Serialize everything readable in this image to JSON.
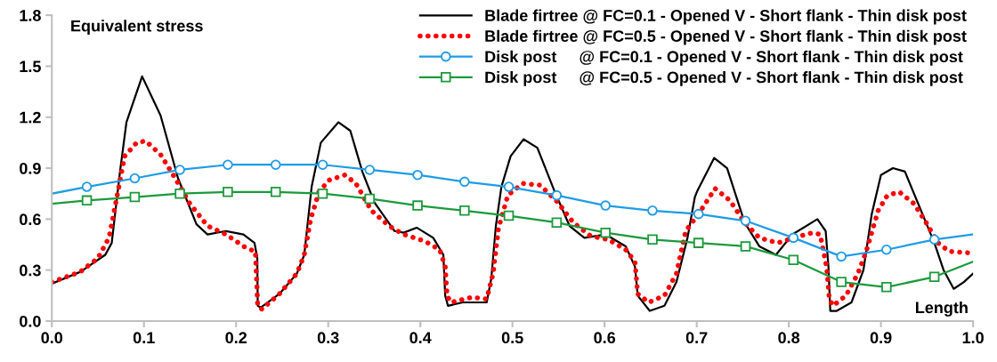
{
  "chart_data": {
    "type": "line",
    "ylabel": "Equivalent stress",
    "xlabel": "Length",
    "xlim": [
      0,
      1
    ],
    "xticks": [
      {
        "value": 0,
        "label": "0.0"
      },
      0.1,
      0.2,
      0.3,
      0.4,
      0.5,
      0.6,
      0.7,
      0.8,
      0.9,
      {
        "value": 1,
        "label": "1.0"
      }
    ],
    "ylim": [
      0,
      1.8
    ],
    "yticks": [
      {
        "value": 0,
        "label": "0.0"
      },
      0.3,
      0.6,
      0.9,
      1.2,
      1.5,
      1.8
    ],
    "grid": false,
    "legend": "top right",
    "series": [
      {
        "name": "Blade firtree @ FC=0.1 - Opened V - Short flank - Thin disk post",
        "color": "#000000",
        "line_style": "solid",
        "marker": "none",
        "x": [
          0,
          0.031,
          0.058,
          0.065,
          0.074,
          0.081,
          0.098,
          0.118,
          0.137,
          0.157,
          0.169,
          0.189,
          0.208,
          0.22,
          0.223,
          0.2235,
          0.227,
          0.247,
          0.266,
          0.274,
          0.282,
          0.292,
          0.311,
          0.324,
          0.337,
          0.35,
          0.372,
          0.382,
          0.396,
          0.414,
          0.425,
          0.427,
          0.43,
          0.446,
          0.472,
          0.477,
          0.482,
          0.488,
          0.498,
          0.512,
          0.527,
          0.546,
          0.562,
          0.578,
          0.601,
          0.623,
          0.633,
          0.636,
          0.649,
          0.665,
          0.678,
          0.69,
          0.698,
          0.701,
          0.719,
          0.733,
          0.752,
          0.768,
          0.786,
          0.804,
          0.831,
          0.84,
          0.843,
          0.845,
          0.852,
          0.868,
          0.881,
          0.89,
          0.9,
          0.913,
          0.926,
          0.942,
          0.958,
          0.968,
          0.979,
          0.99,
          1.0
        ],
        "values": [
          0.22,
          0.29,
          0.39,
          0.46,
          0.88,
          1.17,
          1.44,
          1.21,
          0.84,
          0.57,
          0.51,
          0.53,
          0.51,
          0.46,
          0.37,
          0.09,
          0.08,
          0.16,
          0.28,
          0.39,
          0.79,
          1.05,
          1.17,
          1.12,
          0.88,
          0.7,
          0.53,
          0.52,
          0.55,
          0.49,
          0.39,
          0.15,
          0.09,
          0.11,
          0.11,
          0.25,
          0.56,
          0.79,
          0.97,
          1.07,
          1.02,
          0.76,
          0.56,
          0.49,
          0.51,
          0.44,
          0.32,
          0.15,
          0.06,
          0.09,
          0.23,
          0.49,
          0.73,
          0.77,
          0.96,
          0.9,
          0.58,
          0.44,
          0.39,
          0.51,
          0.6,
          0.53,
          0.32,
          0.06,
          0.06,
          0.11,
          0.3,
          0.63,
          0.86,
          0.9,
          0.88,
          0.67,
          0.46,
          0.3,
          0.19,
          0.23,
          0.28
        ]
      },
      {
        "name": "Blade firtree @ FC=0.5 - Opened V - Short flank - Thin disk post",
        "color": "#ff0000",
        "line_style": "dotted",
        "marker": "none",
        "x": [
          0,
          0.031,
          0.05,
          0.062,
          0.071,
          0.079,
          0.092,
          0.102,
          0.118,
          0.134,
          0.15,
          0.169,
          0.189,
          0.211,
          0.221,
          0.2235,
          0.228,
          0.247,
          0.266,
          0.274,
          0.281,
          0.29,
          0.301,
          0.318,
          0.33,
          0.347,
          0.366,
          0.382,
          0.405,
          0.421,
          0.427,
          0.429,
          0.433,
          0.456,
          0.472,
          0.479,
          0.485,
          0.495,
          0.511,
          0.53,
          0.549,
          0.566,
          0.585,
          0.604,
          0.623,
          0.633,
          0.636,
          0.648,
          0.665,
          0.678,
          0.688,
          0.702,
          0.72,
          0.736,
          0.752,
          0.768,
          0.788,
          0.805,
          0.826,
          0.834,
          0.841,
          0.844,
          0.848,
          0.862,
          0.875,
          0.884,
          0.897,
          0.907,
          0.92,
          0.936,
          0.949,
          0.962,
          0.974,
          1.0
        ],
        "values": [
          0.23,
          0.29,
          0.37,
          0.49,
          0.74,
          0.97,
          1.05,
          1.06,
          0.98,
          0.84,
          0.69,
          0.56,
          0.51,
          0.43,
          0.41,
          0.09,
          0.07,
          0.16,
          0.28,
          0.39,
          0.6,
          0.76,
          0.83,
          0.86,
          0.81,
          0.65,
          0.56,
          0.51,
          0.47,
          0.42,
          0.32,
          0.15,
          0.11,
          0.14,
          0.13,
          0.28,
          0.55,
          0.74,
          0.81,
          0.8,
          0.7,
          0.58,
          0.5,
          0.48,
          0.42,
          0.35,
          0.16,
          0.11,
          0.15,
          0.28,
          0.53,
          0.63,
          0.78,
          0.71,
          0.58,
          0.49,
          0.46,
          0.49,
          0.52,
          0.51,
          0.32,
          0.13,
          0.09,
          0.15,
          0.28,
          0.41,
          0.65,
          0.74,
          0.76,
          0.69,
          0.58,
          0.46,
          0.41,
          0.4
        ]
      },
      {
        "name": "Disk post     @ FC=0.1 - Opened V - Short flank - Thin disk post",
        "color": "#1e9be6",
        "line_style": "solid",
        "marker": "circle",
        "x": [
          0,
          0.038,
          0.09,
          0.139,
          0.191,
          0.243,
          0.294,
          0.345,
          0.397,
          0.448,
          0.496,
          0.548,
          0.601,
          0.652,
          0.702,
          0.753,
          0.805,
          0.857,
          0.906,
          0.958,
          1.0
        ],
        "values": [
          0.75,
          0.79,
          0.84,
          0.89,
          0.92,
          0.92,
          0.92,
          0.89,
          0.86,
          0.82,
          0.79,
          0.74,
          0.68,
          0.65,
          0.63,
          0.59,
          0.49,
          0.38,
          0.42,
          0.48,
          0.51
        ]
      },
      {
        "name": "Disk post     @ FC=0.5 - Opened V - Short flank - Thin disk post",
        "color": "#1a9a3c",
        "line_style": "solid",
        "marker": "square",
        "x": [
          0,
          0.038,
          0.09,
          0.139,
          0.191,
          0.243,
          0.294,
          0.345,
          0.397,
          0.448,
          0.496,
          0.548,
          0.601,
          0.652,
          0.702,
          0.753,
          0.805,
          0.857,
          0.906,
          0.958,
          1.0
        ],
        "values": [
          0.69,
          0.71,
          0.73,
          0.75,
          0.76,
          0.76,
          0.75,
          0.72,
          0.68,
          0.65,
          0.62,
          0.58,
          0.52,
          0.48,
          0.46,
          0.44,
          0.36,
          0.23,
          0.2,
          0.26,
          0.35
        ]
      }
    ]
  }
}
